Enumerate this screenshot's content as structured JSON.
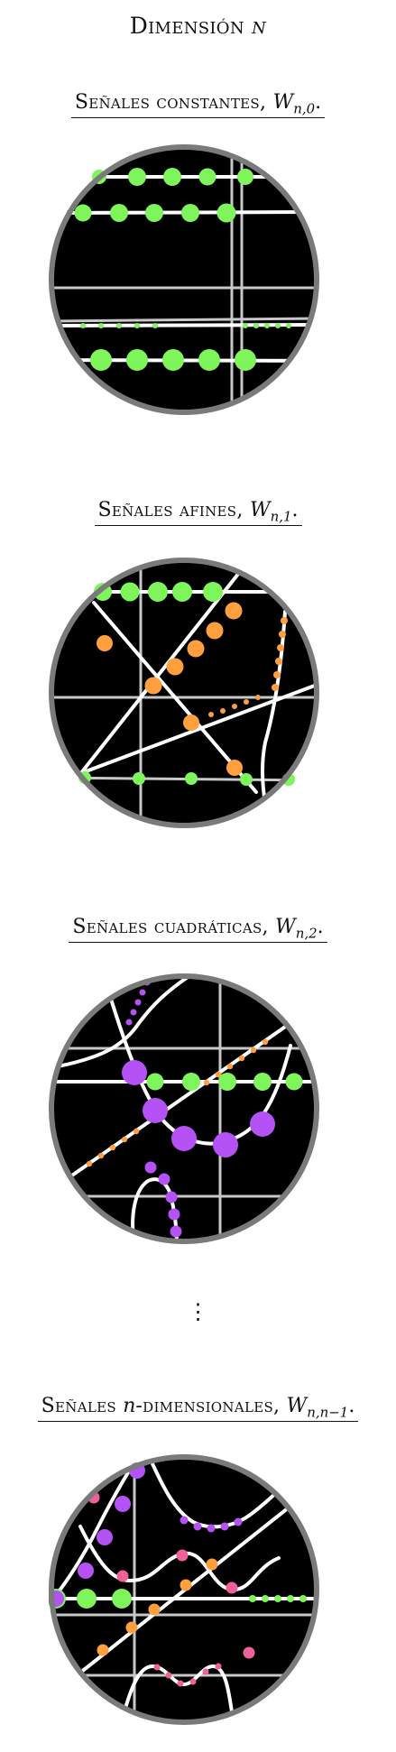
{
  "page_title": {
    "prefix": "Dimensión ",
    "var": "n"
  },
  "sections": [
    {
      "label": "Señales constantes, ",
      "var": "W",
      "sub": "n,0",
      "suffix": "."
    },
    {
      "label": "Señales afines, ",
      "var": "W",
      "sub": "n,1",
      "suffix": "."
    },
    {
      "label": "Señales cuadráticas, ",
      "var": "W",
      "sub": "n,2",
      "suffix": "."
    },
    {
      "label_pre": "Señales ",
      "label_var": "n",
      "label_post": "-dimensionales, ",
      "var": "W",
      "sub": "n,n−1",
      "suffix": "."
    }
  ],
  "ellipsis": "⋮",
  "colors": {
    "green": "#7ef55a",
    "orange": "#ff9f3d",
    "purple": "#b452f5",
    "pink": "#f0609b",
    "disk": "#000000",
    "ring": "#7a7a7a",
    "grid": "#c8c8c8",
    "curve": "#ffffff"
  }
}
